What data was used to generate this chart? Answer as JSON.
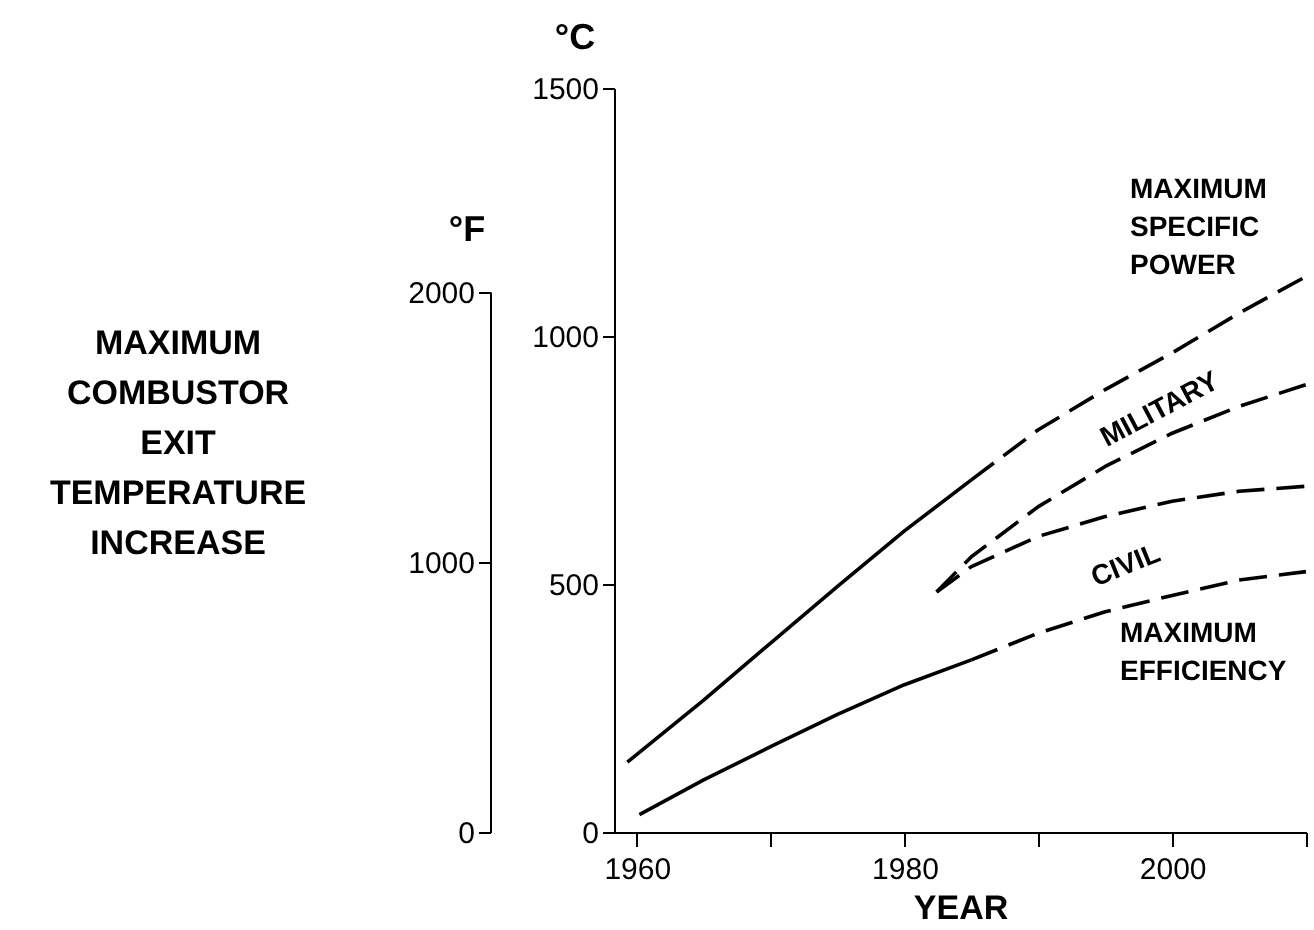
{
  "chart_data": {
    "type": "line",
    "xlabel": "YEAR",
    "ylabel": "°C",
    "y2label": "°F",
    "xlim": [
      1958.3,
      2010
    ],
    "xticks": [
      1960,
      {
        "value": 1970,
        "label": null
      },
      1980,
      {
        "value": 1990,
        "label": null
      },
      2000,
      {
        "value": 2010,
        "label": null
      }
    ],
    "ylim": [
      0,
      1500
    ],
    "yticks": [
      0,
      500,
      1000,
      1500
    ],
    "y2lim": [
      0,
      2000
    ],
    "y2ticks": [
      0,
      1000,
      2000
    ],
    "series": [
      {
        "color": "#000000",
        "line_style": "solid",
        "x": [
          1959.3,
          1965,
          1970,
          1975,
          1980,
          1985
        ],
        "values": [
          141,
          266,
          381,
          495,
          607,
          710
        ]
      },
      {
        "color": "#000000",
        "line_style": "dashed",
        "x": [
          1985,
          1990,
          1995,
          2000,
          2005,
          2010
        ],
        "values": [
          710,
          811,
          892,
          966,
          1046,
          1120
        ]
      },
      {
        "color": "#000000",
        "line_style": "dashed",
        "x": [
          1982.4,
          1985,
          1990,
          1995,
          2000,
          2005,
          2010
        ],
        "values": [
          484,
          555,
          656,
          737,
          804,
          858,
          902
        ]
      },
      {
        "color": "#000000",
        "line_style": "dashed",
        "x": [
          1982.4,
          1985,
          1990,
          1995,
          2000,
          2005,
          2010
        ],
        "values": [
          484,
          535,
          596,
          636,
          667,
          687,
          697
        ]
      },
      {
        "color": "#000000",
        "line_style": "solid",
        "x": [
          1960.2,
          1965,
          1970,
          1975,
          1980,
          1985
        ],
        "values": [
          35,
          105,
          172,
          237,
          297,
          347
        ]
      },
      {
        "color": "#000000",
        "line_style": "dashed",
        "x": [
          1985,
          1990,
          1995,
          2000,
          2005,
          2010
        ],
        "values": [
          347,
          401,
          444,
          477,
          508,
          525
        ]
      }
    ],
    "annotations": [
      "MAXIMUM\nCOMBUSTOR\nEXIT\nTEMPERATURE\nINCREASE",
      "MAXIMUM\nSPECIFIC\nPOWER",
      "MILITARY",
      "CIVIL",
      "MAXIMUM\nEFFICIENCY"
    ],
    "grid": false
  }
}
